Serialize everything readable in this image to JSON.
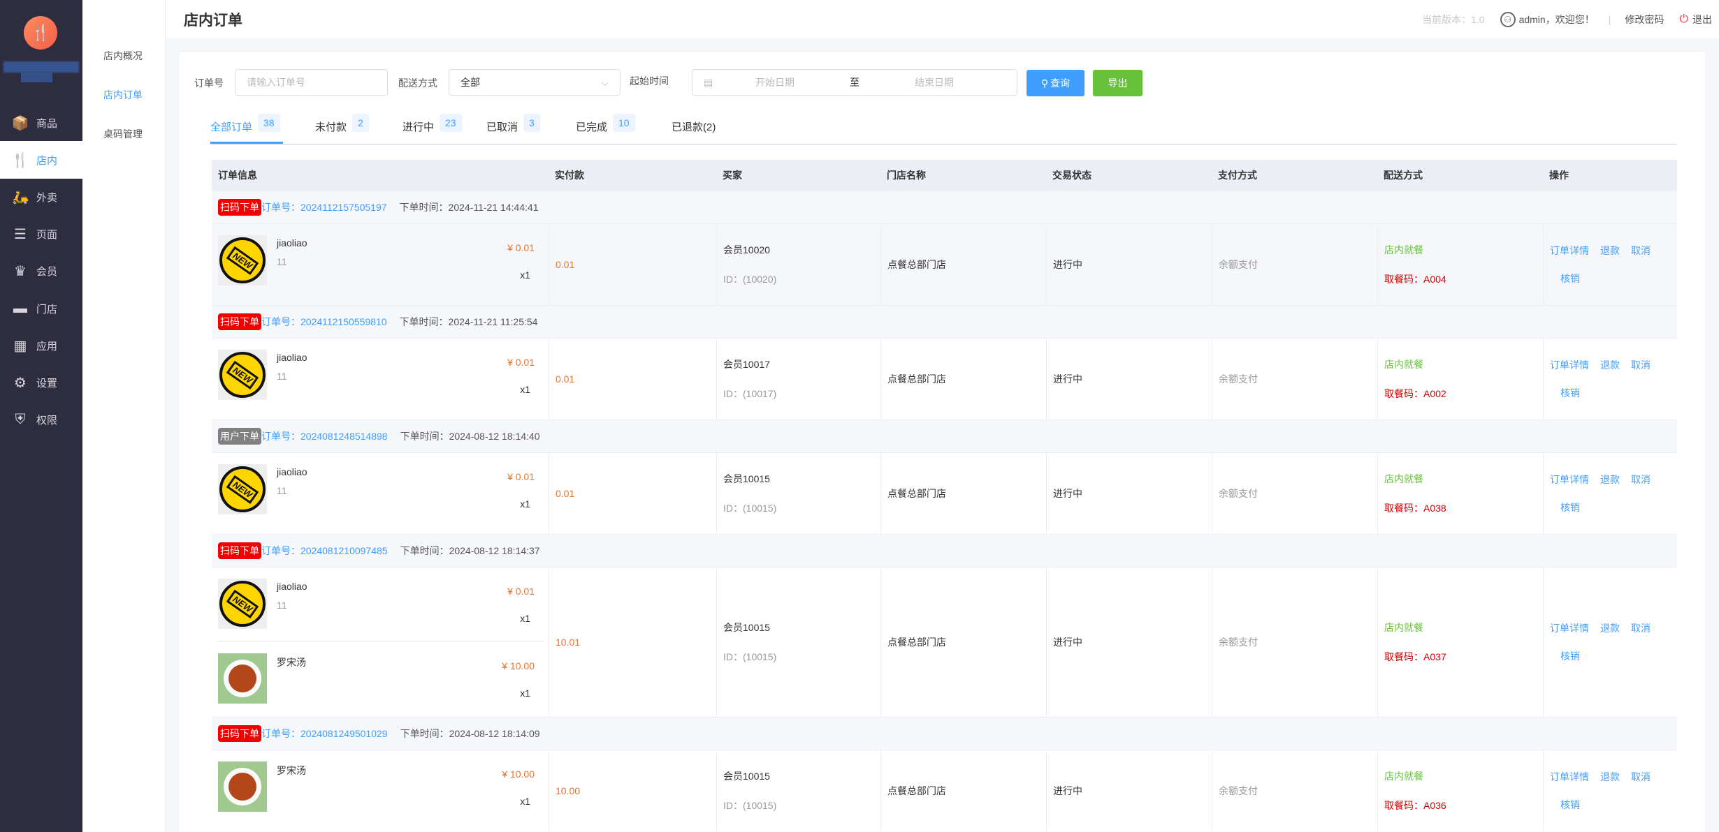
{
  "sidebar": {
    "logo_icon": "utensils-icon",
    "items": [
      {
        "label": "商品",
        "icon": "box-icon"
      },
      {
        "label": "店内",
        "icon": "utensils-icon",
        "active": true
      },
      {
        "label": "外卖",
        "icon": "scooter-icon"
      },
      {
        "label": "页面",
        "icon": "page-icon"
      },
      {
        "label": "会员",
        "icon": "crown-icon"
      },
      {
        "label": "门店",
        "icon": "store-icon"
      },
      {
        "label": "应用",
        "icon": "apps-icon"
      },
      {
        "label": "设置",
        "icon": "gear-icon"
      },
      {
        "label": "权限",
        "icon": "shield-icon"
      }
    ]
  },
  "subnav": {
    "items": [
      {
        "label": "店内概况"
      },
      {
        "label": "店内订单",
        "active": true
      },
      {
        "label": "桌码管理"
      }
    ]
  },
  "header": {
    "title": "店内订单",
    "version": "当前版本：1.0",
    "welcome": "admin，欢迎您！",
    "separator": "|",
    "change_password": "修改密码",
    "logout": "退出"
  },
  "filters": {
    "order_no_label": "订单号",
    "order_no_placeholder": "请输入订单号",
    "delivery_label": "配送方式",
    "delivery_value": "全部",
    "time_label": "起始时间",
    "start_placeholder": "开始日期",
    "range_sep": "至",
    "end_placeholder": "结束日期",
    "search_label": "查询",
    "export_label": "导出"
  },
  "tabs": [
    {
      "label": "全部订单",
      "count": "38",
      "active": true
    },
    {
      "label": "未付款",
      "count": "2"
    },
    {
      "label": "进行中",
      "count": "23"
    },
    {
      "label": "已取消",
      "count": "3"
    },
    {
      "label": "已完成",
      "count": "10"
    },
    {
      "label": "已退款(2)",
      "count": null
    }
  ],
  "table": {
    "columns": [
      "订单信息",
      "实付款",
      "买家",
      "门店名称",
      "交易状态",
      "支付方式",
      "配送方式",
      "操作"
    ],
    "actions": [
      "订单详情",
      "退款",
      "取消",
      "核销"
    ],
    "orders": [
      {
        "source": "扫码下单",
        "source_color": "#f00000",
        "order_no": "订单号：2024112157505197",
        "time": "下单时间：2024-11-21 14:44:41",
        "items": [
          {
            "name": "jiaoliao",
            "spec": "11",
            "price": "¥ 0.01",
            "qty": "x1",
            "image": "new-badge"
          }
        ],
        "paid": "0.01",
        "buyer": "会员10020",
        "buyer_id": "ID：(10020)",
        "store": "点餐总部门店",
        "status": "进行中",
        "payment": "余额支付",
        "delivery": "店内就餐",
        "pickup": "取餐码：A004",
        "highlight": true
      },
      {
        "source": "扫码下单",
        "source_color": "#f00000",
        "order_no": "订单号：2024112150559810",
        "time": "下单时间：2024-11-21 11:25:54",
        "items": [
          {
            "name": "jiaoliao",
            "spec": "11",
            "price": "¥ 0.01",
            "qty": "x1",
            "image": "new-badge"
          }
        ],
        "paid": "0.01",
        "buyer": "会员10017",
        "buyer_id": "ID：(10017)",
        "store": "点餐总部门店",
        "status": "进行中",
        "payment": "余额支付",
        "delivery": "店内就餐",
        "pickup": "取餐码：A002"
      },
      {
        "source": "用户下单",
        "source_color": "#808080",
        "order_no": "订单号：2024081248514898",
        "time": "下单时间：2024-08-12 18:14:40",
        "items": [
          {
            "name": "jiaoliao",
            "spec": "11",
            "price": "¥ 0.01",
            "qty": "x1",
            "image": "new-badge"
          }
        ],
        "paid": "0.01",
        "buyer": "会员10015",
        "buyer_id": "ID：(10015)",
        "store": "点餐总部门店",
        "status": "进行中",
        "payment": "余额支付",
        "delivery": "店内就餐",
        "pickup": "取餐码：A038"
      },
      {
        "source": "扫码下单",
        "source_color": "#f00000",
        "order_no": "订单号：2024081210097485",
        "time": "下单时间：2024-08-12 18:14:37",
        "items": [
          {
            "name": "jiaoliao",
            "spec": "11",
            "price": "¥ 0.01",
            "qty": "x1",
            "image": "new-badge"
          },
          {
            "name": "罗宋汤",
            "spec": "",
            "price": "¥ 10.00",
            "qty": "x1",
            "image": "soup"
          }
        ],
        "paid": "10.01",
        "buyer": "会员10015",
        "buyer_id": "ID：(10015)",
        "store": "点餐总部门店",
        "status": "进行中",
        "payment": "余额支付",
        "delivery": "店内就餐",
        "pickup": "取餐码：A037"
      },
      {
        "source": "扫码下单",
        "source_color": "#f00000",
        "order_no": "订单号：2024081249501029",
        "time": "下单时间：2024-08-12 18:14:09",
        "items": [
          {
            "name": "罗宋汤",
            "spec": "",
            "price": "¥ 10.00",
            "qty": "x1",
            "image": "soup"
          }
        ],
        "paid": "10.00",
        "buyer": "会员10015",
        "buyer_id": "ID：(10015)",
        "store": "点餐总部门店",
        "status": "进行中",
        "payment": "余额支付",
        "delivery": "店内就餐",
        "pickup": "取餐码：A036"
      }
    ]
  },
  "colors": {
    "primary": "#409eff",
    "success": "#67c23a",
    "sidebar": "#2e2d3f",
    "price": "#e6752e",
    "pickup": "#d40000"
  }
}
